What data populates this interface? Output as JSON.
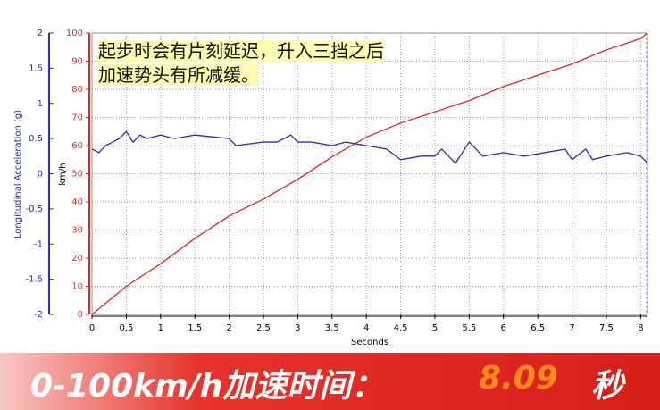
{
  "chart_data": {
    "type": "line",
    "annotation": [
      "起步时会有片刻延迟，升入三挡之后",
      "加速势头有所减缓。"
    ],
    "x_label": "Seconds",
    "y_label": "Longitudinal Acceleration (g)",
    "y2_label": "km/h",
    "xlim": [
      0,
      8.1
    ],
    "xticks": [
      0,
      0.5,
      1,
      1.5,
      2,
      2.5,
      3,
      3.5,
      4,
      4.5,
      5,
      5.5,
      6,
      6.5,
      7,
      7.5,
      8
    ],
    "ylim": [
      -2,
      2
    ],
    "yticks": [
      2,
      1.5,
      1,
      0.5,
      0,
      -0.5,
      -1,
      -1.5,
      -2
    ],
    "y2lim": [
      0,
      100
    ],
    "y2ticks": [
      0,
      10,
      20,
      30,
      40,
      50,
      60,
      70,
      80,
      90,
      100
    ],
    "grid": true,
    "vline": 8.09,
    "series": [
      {
        "color": "#e8231f",
        "axis": "y2",
        "x": [
          0,
          0.5,
          1,
          1.5,
          2,
          2.5,
          3,
          3.5,
          4,
          4.5,
          5,
          5.5,
          6,
          6.5,
          7,
          7.5,
          8,
          8.09
        ],
        "values": [
          0,
          10,
          18,
          27,
          35,
          41,
          48,
          56,
          63,
          68,
          72,
          76,
          81,
          85,
          89,
          94,
          98,
          100
        ]
      },
      {
        "color": "#2b2bb5",
        "axis": "y",
        "x": [
          0,
          0.1,
          0.2,
          0.4,
          0.5,
          0.6,
          0.7,
          0.8,
          1,
          1.2,
          1.5,
          2,
          2.1,
          2.5,
          2.7,
          2.9,
          3,
          3.2,
          3.5,
          3.7,
          4,
          4.3,
          4.5,
          4.8,
          5,
          5.1,
          5.3,
          5.5,
          5.7,
          6,
          6.3,
          6.9,
          7,
          7.2,
          7.3,
          7.5,
          7.8,
          8,
          8.1
        ],
        "values": [
          0.35,
          0.3,
          0.4,
          0.5,
          0.6,
          0.45,
          0.55,
          0.5,
          0.55,
          0.5,
          0.55,
          0.5,
          0.4,
          0.45,
          0.45,
          0.55,
          0.45,
          0.45,
          0.4,
          0.45,
          0.4,
          0.35,
          0.2,
          0.25,
          0.25,
          0.35,
          0.15,
          0.45,
          0.25,
          0.3,
          0.25,
          0.35,
          0.2,
          0.35,
          0.2,
          0.25,
          0.3,
          0.25,
          0.15
        ]
      }
    ]
  },
  "banner": {
    "label": "0-100km/h加速时间：",
    "value": "8.09",
    "unit": "秒"
  }
}
